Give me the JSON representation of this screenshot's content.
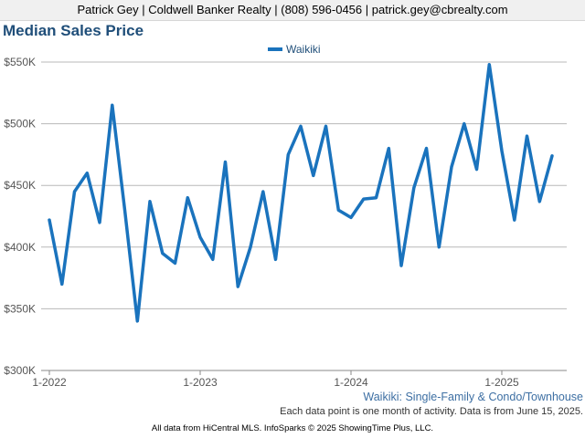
{
  "header": {
    "text": "Patrick Gey | Coldwell Banker Realty | (808) 596-0456 | patrick.gey@cbrealty.com"
  },
  "chart_title": "Median Sales Price",
  "chart_subtitle": "Waikiki: Single-Family & Condo/Townhouse",
  "note": "Each data point is one month of activity. Data is from June 15, 2025.",
  "footer": "All data from HiCentral MLS. InfoSparks © 2025 ShowingTime Plus, LLC.",
  "colors": {
    "line": "#1a73bd",
    "grid": "#b8b8b8",
    "title": "#1f4e79"
  },
  "chart_data": {
    "type": "line",
    "title": "Median Sales Price",
    "series": [
      {
        "name": "Waikiki",
        "values": [
          422000,
          370000,
          445000,
          460000,
          420000,
          515000,
          430000,
          340000,
          437000,
          395000,
          387000,
          440000,
          408000,
          390000,
          469000,
          368000,
          400000,
          445000,
          390000,
          475000,
          498000,
          458000,
          498000,
          430000,
          424000,
          439000,
          440000,
          480000,
          385000,
          448000,
          480000,
          400000,
          465000,
          500000,
          463000,
          548000,
          478000,
          422000,
          490000,
          437000,
          474000
        ]
      }
    ],
    "x_start": "2022-01",
    "x_ticks": [
      "1-2022",
      "1-2023",
      "1-2024",
      "1-2025"
    ],
    "y_ticks": [
      "$300K",
      "$350K",
      "$400K",
      "$450K",
      "$500K",
      "$550K"
    ],
    "ylim": [
      300000,
      550000
    ],
    "grid": true,
    "legend": "top-center"
  }
}
